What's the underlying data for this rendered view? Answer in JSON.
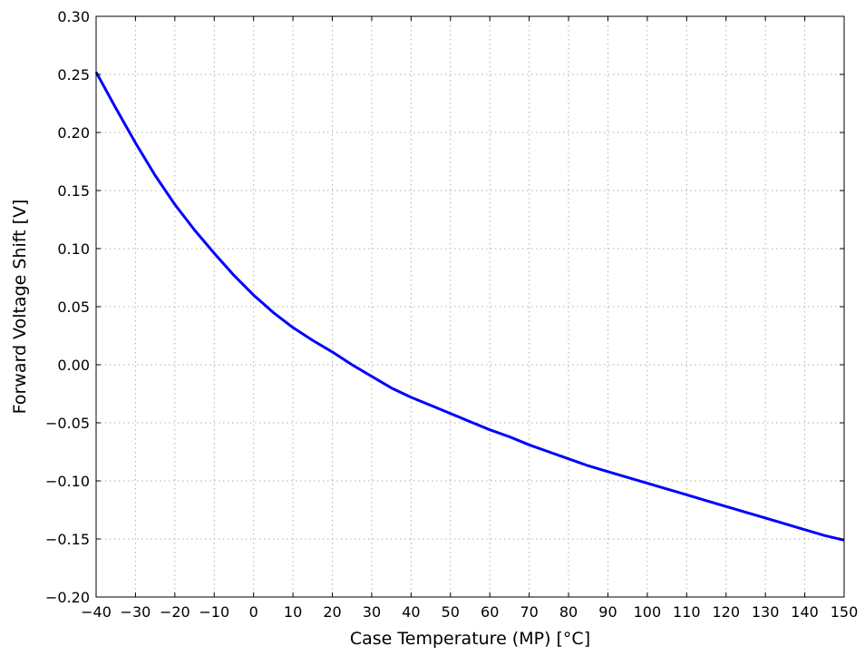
{
  "chart_data": {
    "type": "line",
    "title": "",
    "xlabel": "Case Temperature (MP) [°C]",
    "ylabel": "Forward Voltage Shift [V]",
    "xlim": [
      -40,
      150
    ],
    "ylim": [
      -0.2,
      0.3
    ],
    "grid": true,
    "legend": "none",
    "x_ticks": [
      -40,
      -30,
      -20,
      -10,
      0,
      10,
      20,
      30,
      40,
      50,
      60,
      70,
      80,
      90,
      100,
      110,
      120,
      130,
      140,
      150
    ],
    "x_tick_labels": [
      "−40",
      "−30",
      "−20",
      "−10",
      "0",
      "10",
      "20",
      "30",
      "40",
      "50",
      "60",
      "70",
      "80",
      "90",
      "100",
      "110",
      "120",
      "130",
      "140",
      "150"
    ],
    "y_ticks": [
      -0.2,
      -0.15,
      -0.1,
      -0.05,
      0.0,
      0.05,
      0.1,
      0.15,
      0.2,
      0.25,
      0.3
    ],
    "y_tick_labels": [
      "−0.20",
      "−0.15",
      "−0.10",
      "−0.05",
      "0.00",
      "0.05",
      "0.10",
      "0.15",
      "0.20",
      "0.25",
      "0.30"
    ],
    "colors": {
      "line": "#0000ff",
      "grid": "#b0b0b0",
      "frame": "#000000"
    },
    "series": [
      {
        "x": [
          -40,
          -35,
          -30,
          -25,
          -20,
          -15,
          -10,
          -5,
          0,
          5,
          10,
          15,
          20,
          25,
          30,
          35,
          40,
          45,
          50,
          55,
          60,
          65,
          70,
          75,
          80,
          85,
          90,
          95,
          100,
          105,
          110,
          115,
          120,
          125,
          130,
          135,
          140,
          145,
          150
        ],
        "y": [
          0.252,
          0.221,
          0.191,
          0.163,
          0.138,
          0.116,
          0.096,
          0.077,
          0.06,
          0.045,
          0.032,
          0.021,
          0.011,
          0.0,
          -0.01,
          -0.02,
          -0.028,
          -0.035,
          -0.042,
          -0.049,
          -0.056,
          -0.062,
          -0.069,
          -0.075,
          -0.081,
          -0.087,
          -0.092,
          -0.097,
          -0.102,
          -0.107,
          -0.112,
          -0.117,
          -0.122,
          -0.127,
          -0.132,
          -0.137,
          -0.142,
          -0.147,
          -0.151
        ]
      }
    ]
  }
}
